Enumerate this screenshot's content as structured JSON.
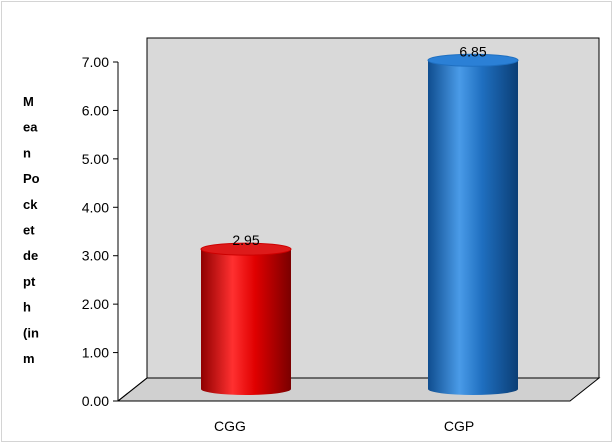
{
  "chart_data": {
    "type": "bar",
    "style": "3d-cylinder",
    "title": "",
    "xlabel": "",
    "ylabel": "Mean Pocket depth (in m",
    "ylabel_lines": [
      "M",
      "ea",
      "n",
      "Po",
      "ck",
      "et",
      "de",
      "pt",
      "h",
      "(in",
      "m"
    ],
    "categories": [
      "CGG",
      "CGP"
    ],
    "values": [
      2.95,
      6.85
    ],
    "data_labels": [
      "2.95",
      "6.85"
    ],
    "bar_colors": [
      "#cc0000",
      "#1f6fc0"
    ],
    "ylim": [
      0,
      7
    ],
    "yticks": [
      "0.00",
      "1.00",
      "2.00",
      "3.00",
      "4.00",
      "5.00",
      "6.00",
      "7.00"
    ],
    "grid": false,
    "legend": "none",
    "wall_color": "#d9d9d9"
  }
}
